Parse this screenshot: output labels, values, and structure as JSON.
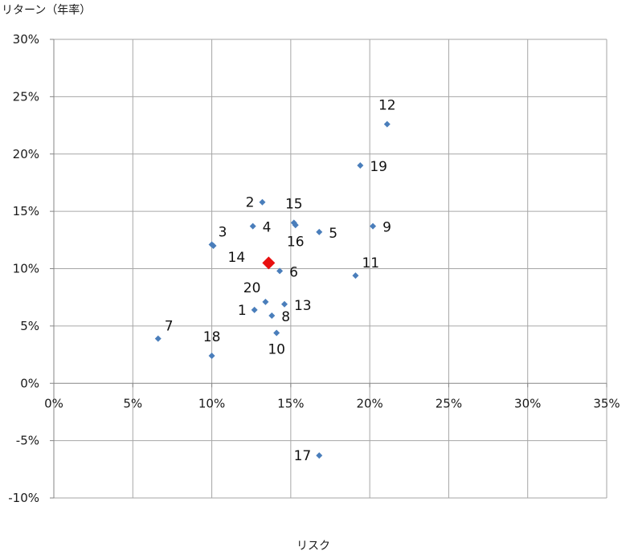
{
  "chart_data": {
    "type": "scatter",
    "ylabel": "リターン（年率）",
    "xlabel": "リスク",
    "xlim": [
      0,
      35
    ],
    "ylim": [
      -10,
      30
    ],
    "x_ticks": [
      0,
      5,
      10,
      15,
      20,
      25,
      30,
      35
    ],
    "y_ticks": [
      -10,
      -5,
      0,
      5,
      10,
      15,
      20,
      25,
      30
    ],
    "x_tick_labels": [
      "0%",
      "5%",
      "10%",
      "15%",
      "20%",
      "25%",
      "30%",
      "35%"
    ],
    "y_tick_labels": [
      "-10%",
      "-5%",
      "0%",
      "5%",
      "10%",
      "15%",
      "20%",
      "25%",
      "30%"
    ],
    "grid": true,
    "legend": "none",
    "colors": {
      "points": "#4a7ebb",
      "highlight": "#e81010",
      "grid": "#a6a6a6",
      "axis": "#868686"
    },
    "points": [
      {
        "label": "1",
        "x": 12.7,
        "y": 6.4,
        "label_pos": "left"
      },
      {
        "label": "2",
        "x": 13.2,
        "y": 15.8,
        "label_pos": "left"
      },
      {
        "label": "3",
        "x": 10.0,
        "y": 12.1,
        "label_pos": "above-right"
      },
      {
        "label": "4",
        "x": 12.6,
        "y": 13.7,
        "label_pos": "right"
      },
      {
        "label": "5",
        "x": 16.8,
        "y": 13.2,
        "label_pos": "right"
      },
      {
        "label": "6",
        "x": 14.3,
        "y": 9.8,
        "label_pos": "right"
      },
      {
        "label": "7",
        "x": 6.6,
        "y": 3.9,
        "label_pos": "above-right"
      },
      {
        "label": "8",
        "x": 13.8,
        "y": 5.9,
        "label_pos": "right"
      },
      {
        "label": "9",
        "x": 20.2,
        "y": 13.7,
        "label_pos": "right"
      },
      {
        "label": "10",
        "x": 14.1,
        "y": 4.4,
        "label_pos": "below"
      },
      {
        "label": "11",
        "x": 19.1,
        "y": 9.4,
        "label_pos": "above-right"
      },
      {
        "label": "12",
        "x": 21.1,
        "y": 22.6,
        "label_pos": "above"
      },
      {
        "label": "13",
        "x": 14.6,
        "y": 6.9,
        "label_pos": "right"
      },
      {
        "label": "14",
        "x": 10.1,
        "y": 12.0,
        "label_pos": "below-right"
      },
      {
        "label": "15",
        "x": 15.2,
        "y": 14.0,
        "label_pos": "above"
      },
      {
        "label": "16",
        "x": 15.3,
        "y": 13.8,
        "label_pos": "below"
      },
      {
        "label": "17",
        "x": 16.8,
        "y": -6.3,
        "label_pos": "left"
      },
      {
        "label": "18",
        "x": 10.0,
        "y": 2.4,
        "label_pos": "above"
      },
      {
        "label": "19",
        "x": 19.4,
        "y": 19.0,
        "label_pos": "right"
      },
      {
        "label": "20",
        "x": 13.4,
        "y": 7.1,
        "label_pos": "above-left"
      }
    ],
    "highlight_point": {
      "x": 13.6,
      "y": 10.5
    }
  }
}
